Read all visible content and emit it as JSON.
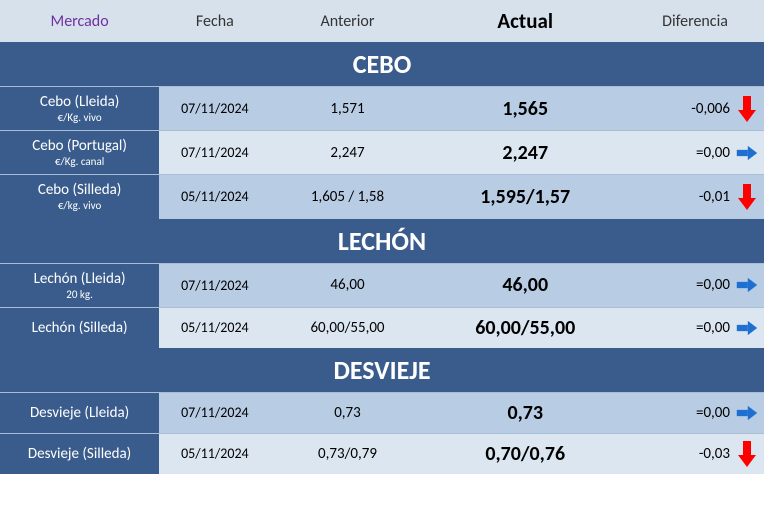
{
  "header": {
    "mercado": "Mercado",
    "fecha": "Fecha",
    "anterior": "Anterior",
    "actual": "Actual",
    "diferencia": "Diferencia"
  },
  "colors": {
    "section_bg": "#3a5c8c",
    "row_dark": "#b8cce4",
    "row_light": "#dce6f1",
    "header_bg": "#d6e1ec",
    "arrow_down": "#ff0000",
    "arrow_flat": "#1f6fd0",
    "mercado_text": "#7030a0"
  },
  "sections": [
    {
      "title": "CEBO",
      "rows": [
        {
          "mkt": "Cebo (Lleida)",
          "sub": "€/Kg. vivo",
          "fecha": "07/11/2024",
          "ant": "1,571",
          "act": "1,565",
          "dif": "-0,006",
          "trend": "down",
          "shade": "dark"
        },
        {
          "mkt": "Cebo (Portugal)",
          "sub": "€/Kg. canal",
          "fecha": "07/11/2024",
          "ant": "2,247",
          "act": "2,247",
          "dif": "=0,00",
          "trend": "flat",
          "shade": "light"
        },
        {
          "mkt": "Cebo (Silleda)",
          "sub": "€/kg. vivo",
          "fecha": "05/11/2024",
          "ant": "1,605 / 1,58",
          "act": "1,595/1,57",
          "dif": "-0,01",
          "trend": "down",
          "shade": "dark"
        }
      ]
    },
    {
      "title": "LECHÓN",
      "rows": [
        {
          "mkt": "Lechón (Lleida)",
          "sub": "20 kg.",
          "fecha": "07/11/2024",
          "ant": "46,00",
          "act": "46,00",
          "dif": "=0,00",
          "trend": "flat",
          "shade": "dark"
        },
        {
          "mkt": "Lechón (Silleda)",
          "sub": "",
          "fecha": "05/11/2024",
          "ant": "60,00/55,00",
          "act": "60,00/55,00",
          "dif": "=0,00",
          "trend": "flat",
          "shade": "light"
        }
      ]
    },
    {
      "title": "DESVIEJE",
      "rows": [
        {
          "mkt": "Desvieje (Lleida)",
          "sub": "",
          "fecha": "07/11/2024",
          "ant": "0,73",
          "act": "0,73",
          "dif": "=0,00",
          "trend": "flat",
          "shade": "dark"
        },
        {
          "mkt": "Desvieje (Silleda)",
          "sub": "",
          "fecha": "05/11/2024",
          "ant": "0,73/0,79",
          "act": "0,70/0,76",
          "dif": "-0,03",
          "trend": "down",
          "shade": "light"
        }
      ]
    }
  ]
}
